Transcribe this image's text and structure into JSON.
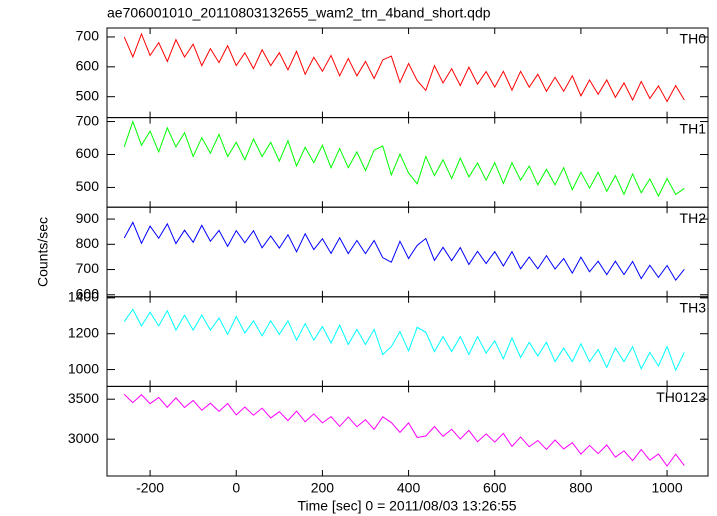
{
  "chart_data": {
    "type": "line",
    "title": "ae706001010_20110803132655_wam2_trn_4band_short.qdp",
    "x_label": "Time [sec] 0 = 2011/08/03 13:26:55",
    "y_label": "Counts/sec",
    "xlim": [
      -300,
      1095
    ],
    "xticks": [
      -200,
      0,
      200,
      400,
      600,
      800,
      1000
    ],
    "x": [
      -260,
      -240,
      -220,
      -200,
      -180,
      -160,
      -140,
      -120,
      -100,
      -80,
      -60,
      -40,
      -20,
      0,
      20,
      40,
      60,
      80,
      100,
      120,
      140,
      160,
      180,
      200,
      220,
      240,
      260,
      280,
      300,
      320,
      340,
      360,
      380,
      400,
      420,
      440,
      460,
      480,
      500,
      520,
      540,
      560,
      580,
      600,
      620,
      640,
      660,
      680,
      700,
      720,
      740,
      760,
      780,
      800,
      820,
      840,
      860,
      880,
      900,
      920,
      940,
      960,
      980,
      1000,
      1020,
      1040
    ],
    "panels": [
      {
        "name": "TH0",
        "color": "#ff0000",
        "ylim": [
          430,
          730
        ],
        "yticks": [
          500,
          600,
          700
        ],
        "values": [
          700,
          633,
          710,
          638,
          681,
          618,
          691,
          633,
          676,
          604,
          661,
          614,
          671,
          604,
          647,
          594,
          657,
          604,
          647,
          590,
          652,
          575,
          632,
          585,
          638,
          570,
          628,
          570,
          618,
          561,
          623,
          636,
          548,
          611,
          554,
          521,
          604,
          546,
          594,
          537,
          599,
          542,
          584,
          532,
          585,
          522,
          585,
          532,
          575,
          518,
          565,
          518,
          570,
          503,
          556,
          508,
          556,
          498,
          546,
          489,
          551,
          494,
          536,
          484,
          537,
          489
        ]
      },
      {
        "name": "TH1",
        "color": "#00ff00",
        "ylim": [
          440,
          712
        ],
        "yticks": [
          500,
          600,
          700
        ],
        "values": [
          623,
          700,
          628,
          671,
          608,
          681,
          623,
          666,
          594,
          651,
          604,
          661,
          594,
          637,
          584,
          647,
          594,
          637,
          580,
          642,
          565,
          622,
          575,
          628,
          560,
          618,
          560,
          608,
          551,
          613,
          626,
          538,
          601,
          544,
          511,
          594,
          536,
          584,
          527,
          589,
          532,
          574,
          522,
          575,
          512,
          575,
          522,
          565,
          508,
          555,
          508,
          560,
          493,
          546,
          498,
          546,
          488,
          536,
          479,
          541,
          484,
          526,
          474,
          527,
          479,
          497
        ]
      },
      {
        "name": "TH2",
        "color": "#0000ff",
        "ylim": [
          592,
          947
        ],
        "yticks": [
          600,
          700,
          800,
          900
        ],
        "values": [
          825,
          887,
          804,
          872,
          824,
          881,
          803,
          856,
          808,
          875,
          812,
          855,
          792,
          854,
          806,
          854,
          786,
          833,
          785,
          838,
          770,
          842,
          779,
          822,
          764,
          826,
          763,
          815,
          763,
          815,
          747,
          729,
          812,
          744,
          796,
          823,
          736,
          788,
          735,
          787,
          720,
          772,
          724,
          771,
          714,
          771,
          703,
          750,
          703,
          755,
          702,
          744,
          686,
          749,
          691,
          733,
          680,
          733,
          680,
          732,
          664,
          717,
          669,
          716,
          658,
          701
        ]
      },
      {
        "name": "TH3",
        "color": "#00ffff",
        "ylim": [
          906,
          1406
        ],
        "yticks": [
          1000,
          1200,
          1400
        ],
        "values": [
          1268,
          1336,
          1244,
          1320,
          1244,
          1328,
          1220,
          1304,
          1220,
          1304,
          1220,
          1288,
          1196,
          1296,
          1204,
          1272,
          1188,
          1272,
          1196,
          1272,
          1164,
          1256,
          1164,
          1240,
          1148,
          1248,
          1140,
          1224,
          1140,
          1224,
          1084,
          1128,
          1212,
          1104,
          1236,
          1208,
          1100,
          1184,
          1100,
          1184,
          1084,
          1184,
          1092,
          1160,
          1060,
          1176,
          1068,
          1152,
          1076,
          1152,
          1044,
          1120,
          1044,
          1144,
          1044,
          1112,
          1012,
          1120,
          1044,
          1128,
          1004,
          1096,
          1020,
          1128,
          996,
          1096
        ]
      },
      {
        "name": "TH0123",
        "color": "#ff00ff",
        "ylim": [
          2540,
          3660
        ],
        "yticks": [
          3000,
          3500
        ],
        "values": [
          3560,
          3458,
          3556,
          3444,
          3522,
          3400,
          3518,
          3396,
          3484,
          3362,
          3450,
          3348,
          3446,
          3304,
          3402,
          3300,
          3388,
          3266,
          3344,
          3232,
          3350,
          3218,
          3316,
          3204,
          3282,
          3160,
          3278,
          3156,
          3244,
          3122,
          3280,
          3208,
          3086,
          3204,
          3022,
          3040,
          3158,
          3036,
          3124,
          3002,
          3110,
          2968,
          3066,
          2964,
          3072,
          2910,
          3028,
          2906,
          2984,
          2872,
          2990,
          2878,
          2956,
          2814,
          2922,
          2820,
          2928,
          2776,
          2854,
          2732,
          2870,
          2738,
          2816,
          2664,
          2812,
          2670
        ]
      }
    ]
  }
}
